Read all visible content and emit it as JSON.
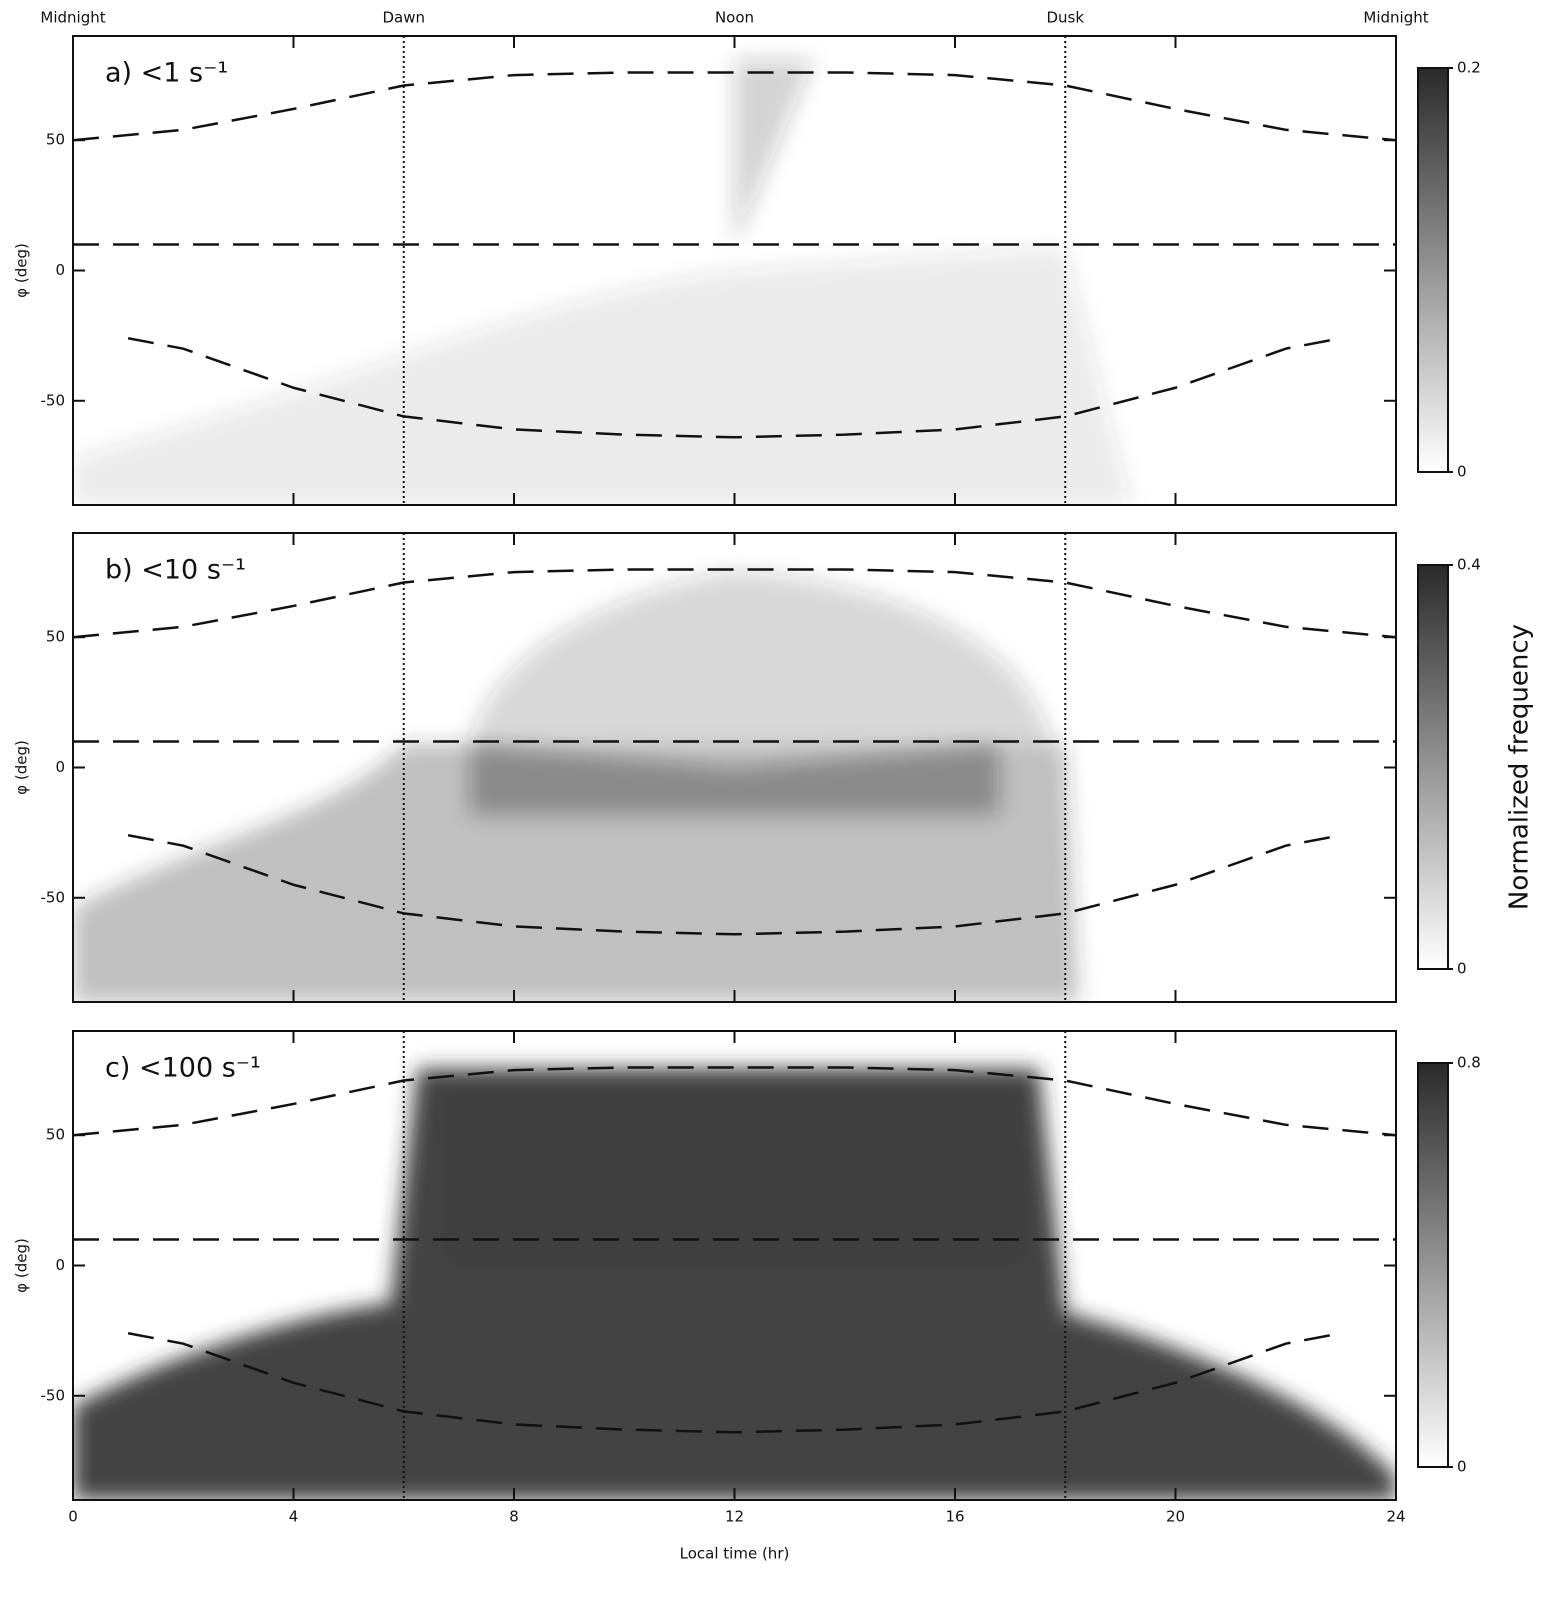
{
  "chart_data": [
    {
      "type": "heatmap",
      "label": "a) <1 s⁻¹",
      "ylabel": "φ (deg)",
      "top_ticks": [
        {
          "value": 0,
          "label": "Midnight"
        },
        {
          "value": 6,
          "label": "Dawn"
        },
        {
          "value": 12,
          "label": "Noon"
        },
        {
          "value": 18,
          "label": "Dusk"
        },
        {
          "value": 24,
          "label": "Midnight"
        }
      ],
      "xlim": [
        0,
        24
      ],
      "xticks": [
        0,
        4,
        8,
        12,
        16,
        20,
        24
      ],
      "ylim": [
        -90,
        90
      ],
      "yticks": [
        -50,
        0,
        50
      ],
      "clim": [
        0,
        0.2
      ],
      "cticks": [
        0,
        0.2
      ],
      "colormap": [
        "#ffffff",
        "#2a2a2a"
      ],
      "vlines": [
        6,
        18
      ],
      "boundaries": [
        {
          "x": [
            0,
            2,
            4,
            6,
            8,
            10,
            12,
            14,
            16,
            18,
            20,
            22,
            24
          ],
          "y": [
            50,
            54,
            62,
            71,
            75,
            76,
            76,
            76,
            75,
            71,
            62,
            54,
            50
          ]
        },
        {
          "x": [
            0,
            24
          ],
          "y": [
            10,
            10
          ]
        },
        {
          "x": [
            1,
            2,
            4,
            6,
            8,
            10,
            12,
            14,
            16,
            18,
            20,
            22,
            23
          ],
          "y": [
            -26,
            -30,
            -45,
            -56,
            -61,
            -63,
            -64,
            -63,
            -61,
            -56,
            -45,
            -30,
            -26
          ]
        }
      ]
    },
    {
      "type": "heatmap",
      "label": "b) <10 s⁻¹",
      "ylabel": "φ (deg)",
      "colorbar_label": "Normalized frequency",
      "xlim": [
        0,
        24
      ],
      "xticks": [
        0,
        4,
        8,
        12,
        16,
        20,
        24
      ],
      "ylim": [
        -90,
        90
      ],
      "yticks": [
        -50,
        0,
        50
      ],
      "clim": [
        0,
        0.4
      ],
      "cticks": [
        0,
        0.4
      ],
      "colormap": [
        "#ffffff",
        "#2a2a2a"
      ],
      "vlines": [
        6,
        18
      ],
      "boundaries": [
        {
          "x": [
            0,
            2,
            4,
            6,
            8,
            10,
            12,
            14,
            16,
            18,
            20,
            22,
            24
          ],
          "y": [
            50,
            54,
            62,
            71,
            75,
            76,
            76,
            76,
            75,
            71,
            62,
            54,
            50
          ]
        },
        {
          "x": [
            0,
            24
          ],
          "y": [
            10,
            10
          ]
        },
        {
          "x": [
            1,
            2,
            4,
            6,
            8,
            10,
            12,
            14,
            16,
            18,
            20,
            22,
            23
          ],
          "y": [
            -26,
            -30,
            -45,
            -56,
            -61,
            -63,
            -64,
            -63,
            -61,
            -56,
            -45,
            -30,
            -26
          ]
        }
      ]
    },
    {
      "type": "heatmap",
      "label": "c) <100 s⁻¹",
      "ylabel": "φ (deg)",
      "xlabel": "Local time (hr)",
      "xlim": [
        0,
        24
      ],
      "xticks": [
        0,
        4,
        8,
        12,
        16,
        20,
        24
      ],
      "ylim": [
        -90,
        90
      ],
      "yticks": [
        -50,
        0,
        50
      ],
      "clim": [
        0,
        0.8
      ],
      "cticks": [
        0,
        0.8
      ],
      "colormap": [
        "#ffffff",
        "#2a2a2a"
      ],
      "vlines": [
        6,
        18
      ],
      "boundaries": [
        {
          "x": [
            0,
            2,
            4,
            6,
            8,
            10,
            12,
            14,
            16,
            18,
            20,
            22,
            24
          ],
          "y": [
            50,
            54,
            62,
            71,
            75,
            76,
            76,
            76,
            75,
            71,
            62,
            54,
            50
          ]
        },
        {
          "x": [
            0,
            24
          ],
          "y": [
            10,
            10
          ]
        },
        {
          "x": [
            1,
            2,
            4,
            6,
            8,
            10,
            12,
            14,
            16,
            18,
            20,
            22,
            23
          ],
          "y": [
            -26,
            -30,
            -45,
            -56,
            -61,
            -63,
            -64,
            -63,
            -61,
            -56,
            -45,
            -30,
            -26
          ]
        }
      ]
    }
  ]
}
